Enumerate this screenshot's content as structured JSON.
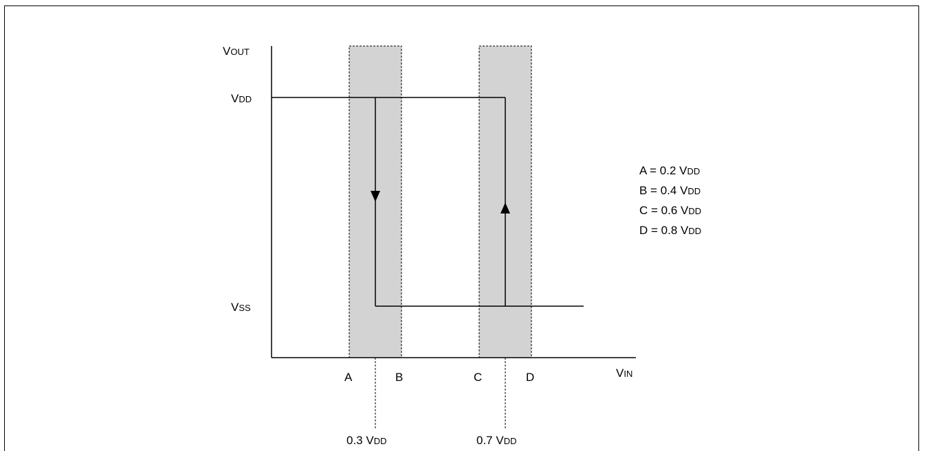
{
  "axes": {
    "y_label_main": "V",
    "y_label_sub": "OUT",
    "x_label_main": "V",
    "x_label_sub": "IN"
  },
  "levels": {
    "vdd_main": "V",
    "vdd_sub": "DD",
    "vss_main": "V",
    "vss_sub": "SS"
  },
  "x_marks": {
    "a": "A",
    "b": "B",
    "c": "C",
    "d": "D"
  },
  "thresholds": {
    "low_main": "0.3 V",
    "low_sub": "DD",
    "high_main": "0.7 V",
    "high_sub": "DD"
  },
  "legend": [
    {
      "main": "A = 0.2 V",
      "sub": "DD"
    },
    {
      "main": "B = 0.4 V",
      "sub": "DD"
    },
    {
      "main": "C = 0.6 V",
      "sub": "DD"
    },
    {
      "main": "D = 0.8 V",
      "sub": "DD"
    }
  ],
  "colors": {
    "band_fill": "#d3d3d3",
    "line": "#000000"
  }
}
